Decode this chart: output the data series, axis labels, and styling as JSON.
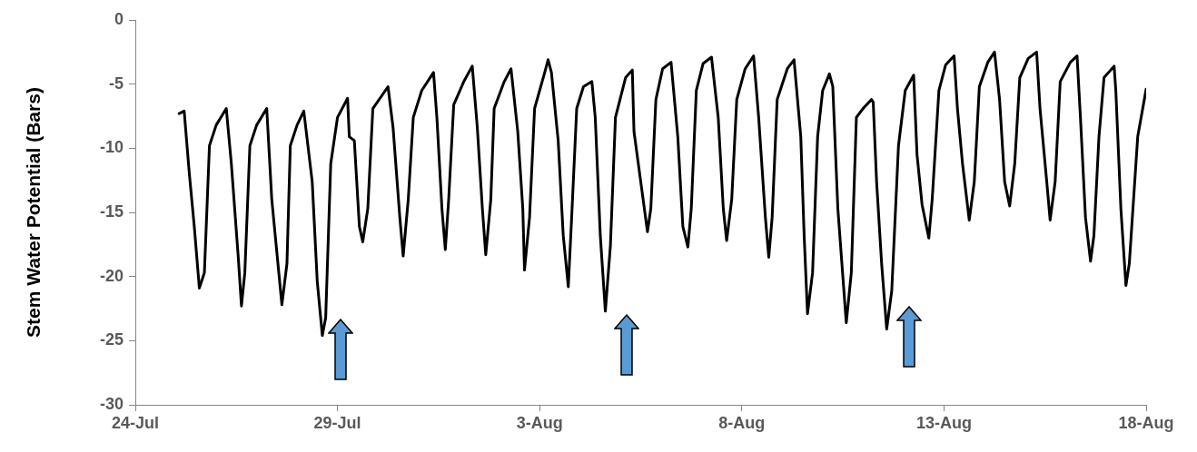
{
  "chart_data": {
    "type": "line",
    "ylabel": "Stem Water Potential (Bars)",
    "xlim": [
      "--07-24",
      "--08-18"
    ],
    "xticks": [
      {
        "value": "--07-24",
        "label": "24-Jul"
      },
      {
        "value": "--07-29",
        "label": "29-Jul"
      },
      {
        "value": "--08-03",
        "label": "3-Aug"
      },
      {
        "value": "--08-08",
        "label": "8-Aug"
      },
      {
        "value": "--08-13",
        "label": "13-Aug"
      },
      {
        "value": "--08-18",
        "label": "18-Aug"
      }
    ],
    "ylim": [
      -30,
      0
    ],
    "yticks": [
      -30,
      -25,
      -20,
      -15,
      -10,
      -5,
      0
    ],
    "grid": false,
    "legend": false,
    "marker": "none",
    "line_style": "solid",
    "series": [
      {
        "color": "#000000",
        "x": [
          "--07-25T02:00",
          "--07-25T05:00",
          "--07-25T08:00",
          "--07-25T11:00",
          "--07-25T14:00",
          "--07-25T17:00",
          "--07-25T20:00",
          "--07-26T00:00",
          "--07-26T06:00",
          "--07-26T09:00",
          "--07-26T13:00",
          "--07-26T15:00",
          "--07-26T17:00",
          "--07-26T20:00",
          "--07-27T00:00",
          "--07-27T06:00",
          "--07-27T09:00",
          "--07-27T15:00",
          "--07-27T18:00",
          "--07-27T20:00",
          "--07-28T00:00",
          "--07-28T04:00",
          "--07-28T09:00",
          "--07-28T12:00",
          "--07-28T15:00",
          "--07-28T17:00",
          "--07-28T20:00",
          "--07-29T00:00",
          "--07-29T06:00",
          "--07-29T07:00",
          "--07-29T10:00",
          "--07-29T13:00",
          "--07-29T15:00",
          "--07-29T18:00",
          "--07-29T21:00",
          "--07-30T06:00",
          "--07-30T09:00",
          "--07-30T13:00",
          "--07-30T15:00",
          "--07-30T18:00",
          "--07-30T21:00",
          "--07-31T02:00",
          "--07-31T09:00",
          "--07-31T11:00",
          "--07-31T14:00",
          "--07-31T16:00",
          "--07-31T18:00",
          "--07-31T21:00",
          "--08-01T03:00",
          "--08-01T08:00",
          "--08-01T11:00",
          "--08-01T14:00",
          "--08-01T16:00",
          "--08-01T19:00",
          "--08-01T21:00",
          "--08-02T03:00",
          "--08-02T07:00",
          "--08-02T11:00",
          "--08-02T14:00",
          "--08-02T15:00",
          "--08-02T18:00",
          "--08-02T21:00",
          "--08-03T03:00",
          "--08-03T05:00",
          "--08-03T07:00",
          "--08-03T11:00",
          "--08-03T14:00",
          "--08-03T17:00",
          "--08-03T19:00",
          "--08-03T22:00",
          "--08-04T02:00",
          "--08-04T07:00",
          "--08-04T09:00",
          "--08-04T12:00",
          "--08-04T15:00",
          "--08-04T18:00",
          "--08-04T21:00",
          "--08-05T03:00",
          "--08-05T07:00",
          "--08-05T08:00",
          "--08-05T12:00",
          "--08-05T16:00",
          "--08-05T18:00",
          "--08-05T21:00",
          "--08-06T01:00",
          "--08-06T06:00",
          "--08-06T10:00",
          "--08-06T13:00",
          "--08-06T16:00",
          "--08-06T18:00",
          "--08-06T21:00",
          "--08-07T01:00",
          "--08-07T06:00",
          "--08-07T10:00",
          "--08-07T13:00",
          "--08-07T15:00",
          "--08-07T18:00",
          "--08-07T21:00",
          "--08-08T02:00",
          "--08-08T07:00",
          "--08-08T10:00",
          "--08-08T14:00",
          "--08-08T16:00",
          "--08-08T18:00",
          "--08-08T21:00",
          "--08-09T03:00",
          "--08-09T07:00",
          "--08-09T11:00",
          "--08-09T13:00",
          "--08-09T15:00",
          "--08-09T18:00",
          "--08-09T21:00",
          "--08-10T00:00",
          "--08-10T04:00",
          "--08-10T06:00",
          "--08-10T09:00",
          "--08-10T14:00",
          "--08-10T17:00",
          "--08-10T20:00",
          "--08-11T00:00",
          "--08-11T05:00",
          "--08-11T06:00",
          "--08-11T08:00",
          "--08-11T11:00",
          "--08-11T14:00",
          "--08-11T17:00",
          "--08-11T21:00",
          "--08-12T01:00",
          "--08-12T06:00",
          "--08-12T08:00",
          "--08-12T11:00",
          "--08-12T15:00",
          "--08-12T17:00",
          "--08-12T21:00",
          "--08-13T01:00",
          "--08-13T06:00",
          "--08-13T08:00",
          "--08-13T11:00",
          "--08-13T15:00",
          "--08-13T18:00",
          "--08-13T21:00",
          "--08-14T02:00",
          "--08-14T06:00",
          "--08-14T09:00",
          "--08-14T12:00",
          "--08-14T15:00",
          "--08-14T18:00",
          "--08-14T21:00",
          "--08-15T02:00",
          "--08-15T07:00",
          "--08-15T09:00",
          "--08-15T13:00",
          "--08-15T15:00",
          "--08-15T18:00",
          "--08-15T21:00",
          "--08-16T03:00",
          "--08-16T07:00",
          "--08-16T09:00",
          "--08-16T12:00",
          "--08-16T15:00",
          "--08-16T17:00",
          "--08-16T20:00",
          "--08-16T23:00",
          "--08-17T05:00",
          "--08-17T06:00",
          "--08-17T09:00",
          "--08-17T12:00",
          "--08-17T14:00",
          "--08-17T19:00",
          "--08-18T00:00"
        ],
        "values": [
          -7.3,
          -7.1,
          -11.9,
          -16.1,
          -20.9,
          -19.7,
          -9.8,
          -8.2,
          -6.9,
          -11.2,
          -18.3,
          -22.3,
          -19.7,
          -9.8,
          -8.2,
          -6.9,
          -14.0,
          -22.2,
          -19.0,
          -9.8,
          -8.2,
          -7.1,
          -12.6,
          -20.4,
          -24.6,
          -23.2,
          -11.2,
          -7.6,
          -6.1,
          -9.1,
          -9.4,
          -16.1,
          -17.3,
          -14.7,
          -6.9,
          -5.2,
          -8.4,
          -15.4,
          -18.4,
          -14.0,
          -7.6,
          -5.5,
          -4.1,
          -7.6,
          -14.7,
          -17.9,
          -14.0,
          -6.6,
          -4.8,
          -3.6,
          -8.4,
          -14.7,
          -18.3,
          -14.0,
          -6.9,
          -4.8,
          -3.8,
          -8.7,
          -14.7,
          -19.5,
          -15.4,
          -6.9,
          -4.1,
          -3.1,
          -4.1,
          -9.4,
          -16.8,
          -20.8,
          -15.4,
          -6.9,
          -5.2,
          -4.8,
          -7.6,
          -16.8,
          -22.7,
          -17.6,
          -7.6,
          -4.5,
          -3.9,
          -8.7,
          -12.6,
          -16.5,
          -14.7,
          -6.2,
          -3.8,
          -3.3,
          -9.1,
          -16.1,
          -17.7,
          -14.7,
          -5.5,
          -3.4,
          -2.9,
          -7.6,
          -14.7,
          -17.2,
          -14.0,
          -6.2,
          -3.8,
          -2.8,
          -7.6,
          -15.4,
          -18.5,
          -15.4,
          -6.2,
          -3.8,
          -3.1,
          -9.1,
          -16.8,
          -22.9,
          -19.7,
          -9.1,
          -5.5,
          -4.2,
          -5.2,
          -14.7,
          -23.6,
          -19.7,
          -7.6,
          -6.9,
          -6.2,
          -6.4,
          -12.6,
          -19.0,
          -24.1,
          -21.1,
          -9.8,
          -5.5,
          -4.3,
          -10.5,
          -14.4,
          -17.0,
          -14.0,
          -5.5,
          -3.5,
          -2.8,
          -6.9,
          -11.2,
          -15.6,
          -12.6,
          -5.2,
          -3.3,
          -2.5,
          -6.2,
          -12.6,
          -14.5,
          -11.2,
          -4.5,
          -3.0,
          -2.5,
          -6.9,
          -12.6,
          -15.6,
          -12.6,
          -4.8,
          -3.3,
          -2.8,
          -7.6,
          -15.4,
          -18.8,
          -16.8,
          -9.1,
          -4.5,
          -3.6,
          -5.5,
          -14.7,
          -20.7,
          -19.0,
          -9.1,
          -5.4
        ]
      }
    ]
  }
}
